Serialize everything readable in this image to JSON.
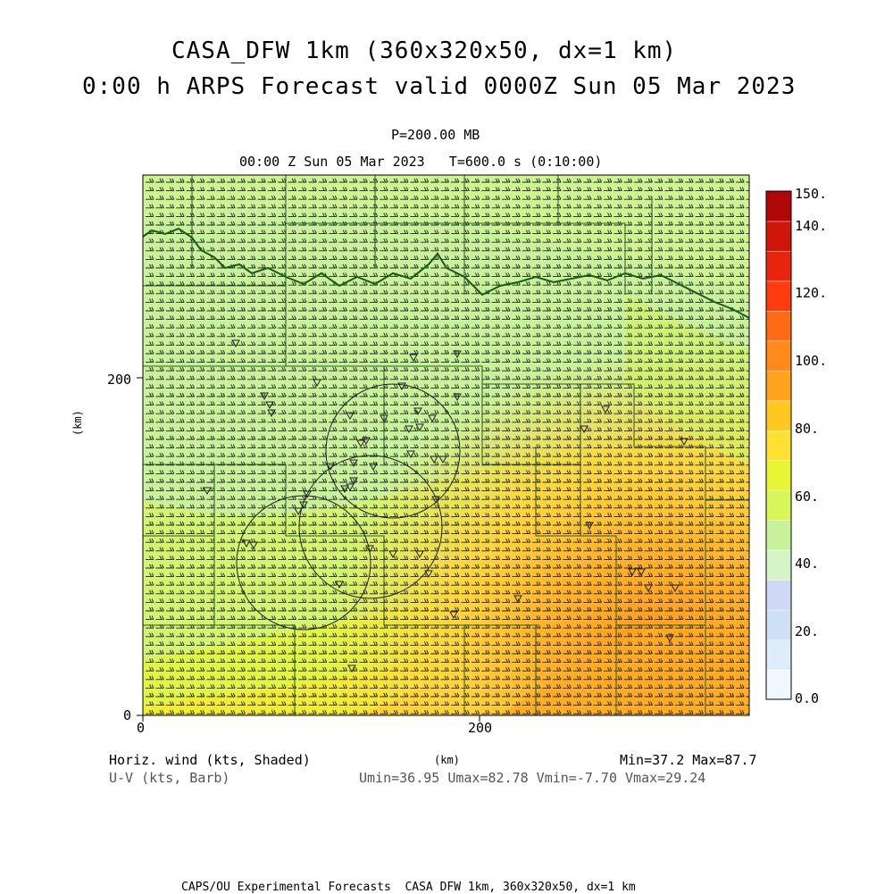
{
  "header": {
    "title_line1": "CASA_DFW 1km (360x320x50, dx=1 km)",
    "title_line2": "0:00 h ARPS Forecast valid 0000Z Sun 05 Mar 2023",
    "pressure_level": "P=200.00 MB",
    "time_info": "00:00 Z Sun 05 Mar 2023   T=600.0 s (0:10:00)"
  },
  "axes": {
    "y_unit": "(km)",
    "x_unit": "(km)",
    "y_ticks": [
      "200",
      "0"
    ],
    "x_ticks": [
      "0",
      "200"
    ]
  },
  "colorbar": {
    "labels": [
      "150.",
      "140.",
      "120.",
      "100.",
      "80.",
      "60.",
      "40.",
      "20.",
      "0.0"
    ],
    "colors": [
      "#f0f8ff",
      "#dcecfb",
      "#cde0f5",
      "#cfd8f5",
      "#d6f5c6",
      "#c8f29a",
      "#d8f55a",
      "#e8f534",
      "#ffe033",
      "#ffc821",
      "#ffa21e",
      "#ff8a19",
      "#ff6a14",
      "#ff3c0f",
      "#e8240c",
      "#d0160a",
      "#b00808"
    ]
  },
  "footer": {
    "field_label": "Horiz. wind (kts, Shaded)",
    "barb_label": "U-V (kts, Barb)",
    "minmax": "Min=37.2 Max=87.7",
    "uv_stats": "Umin=36.95 Umax=82.78 Vmin=-7.70 Vmax=29.24",
    "credit": "CAPS/OU Experimental Forecasts  CASA DFW 1km, 360x320x50, dx=1 km"
  },
  "map": {
    "shading_colors": {
      "low": "#c8f29a",
      "mid": "#d8f55a",
      "high": "#ffc821",
      "peak": "#ffa21e"
    },
    "barb_color": "#222222"
  }
}
